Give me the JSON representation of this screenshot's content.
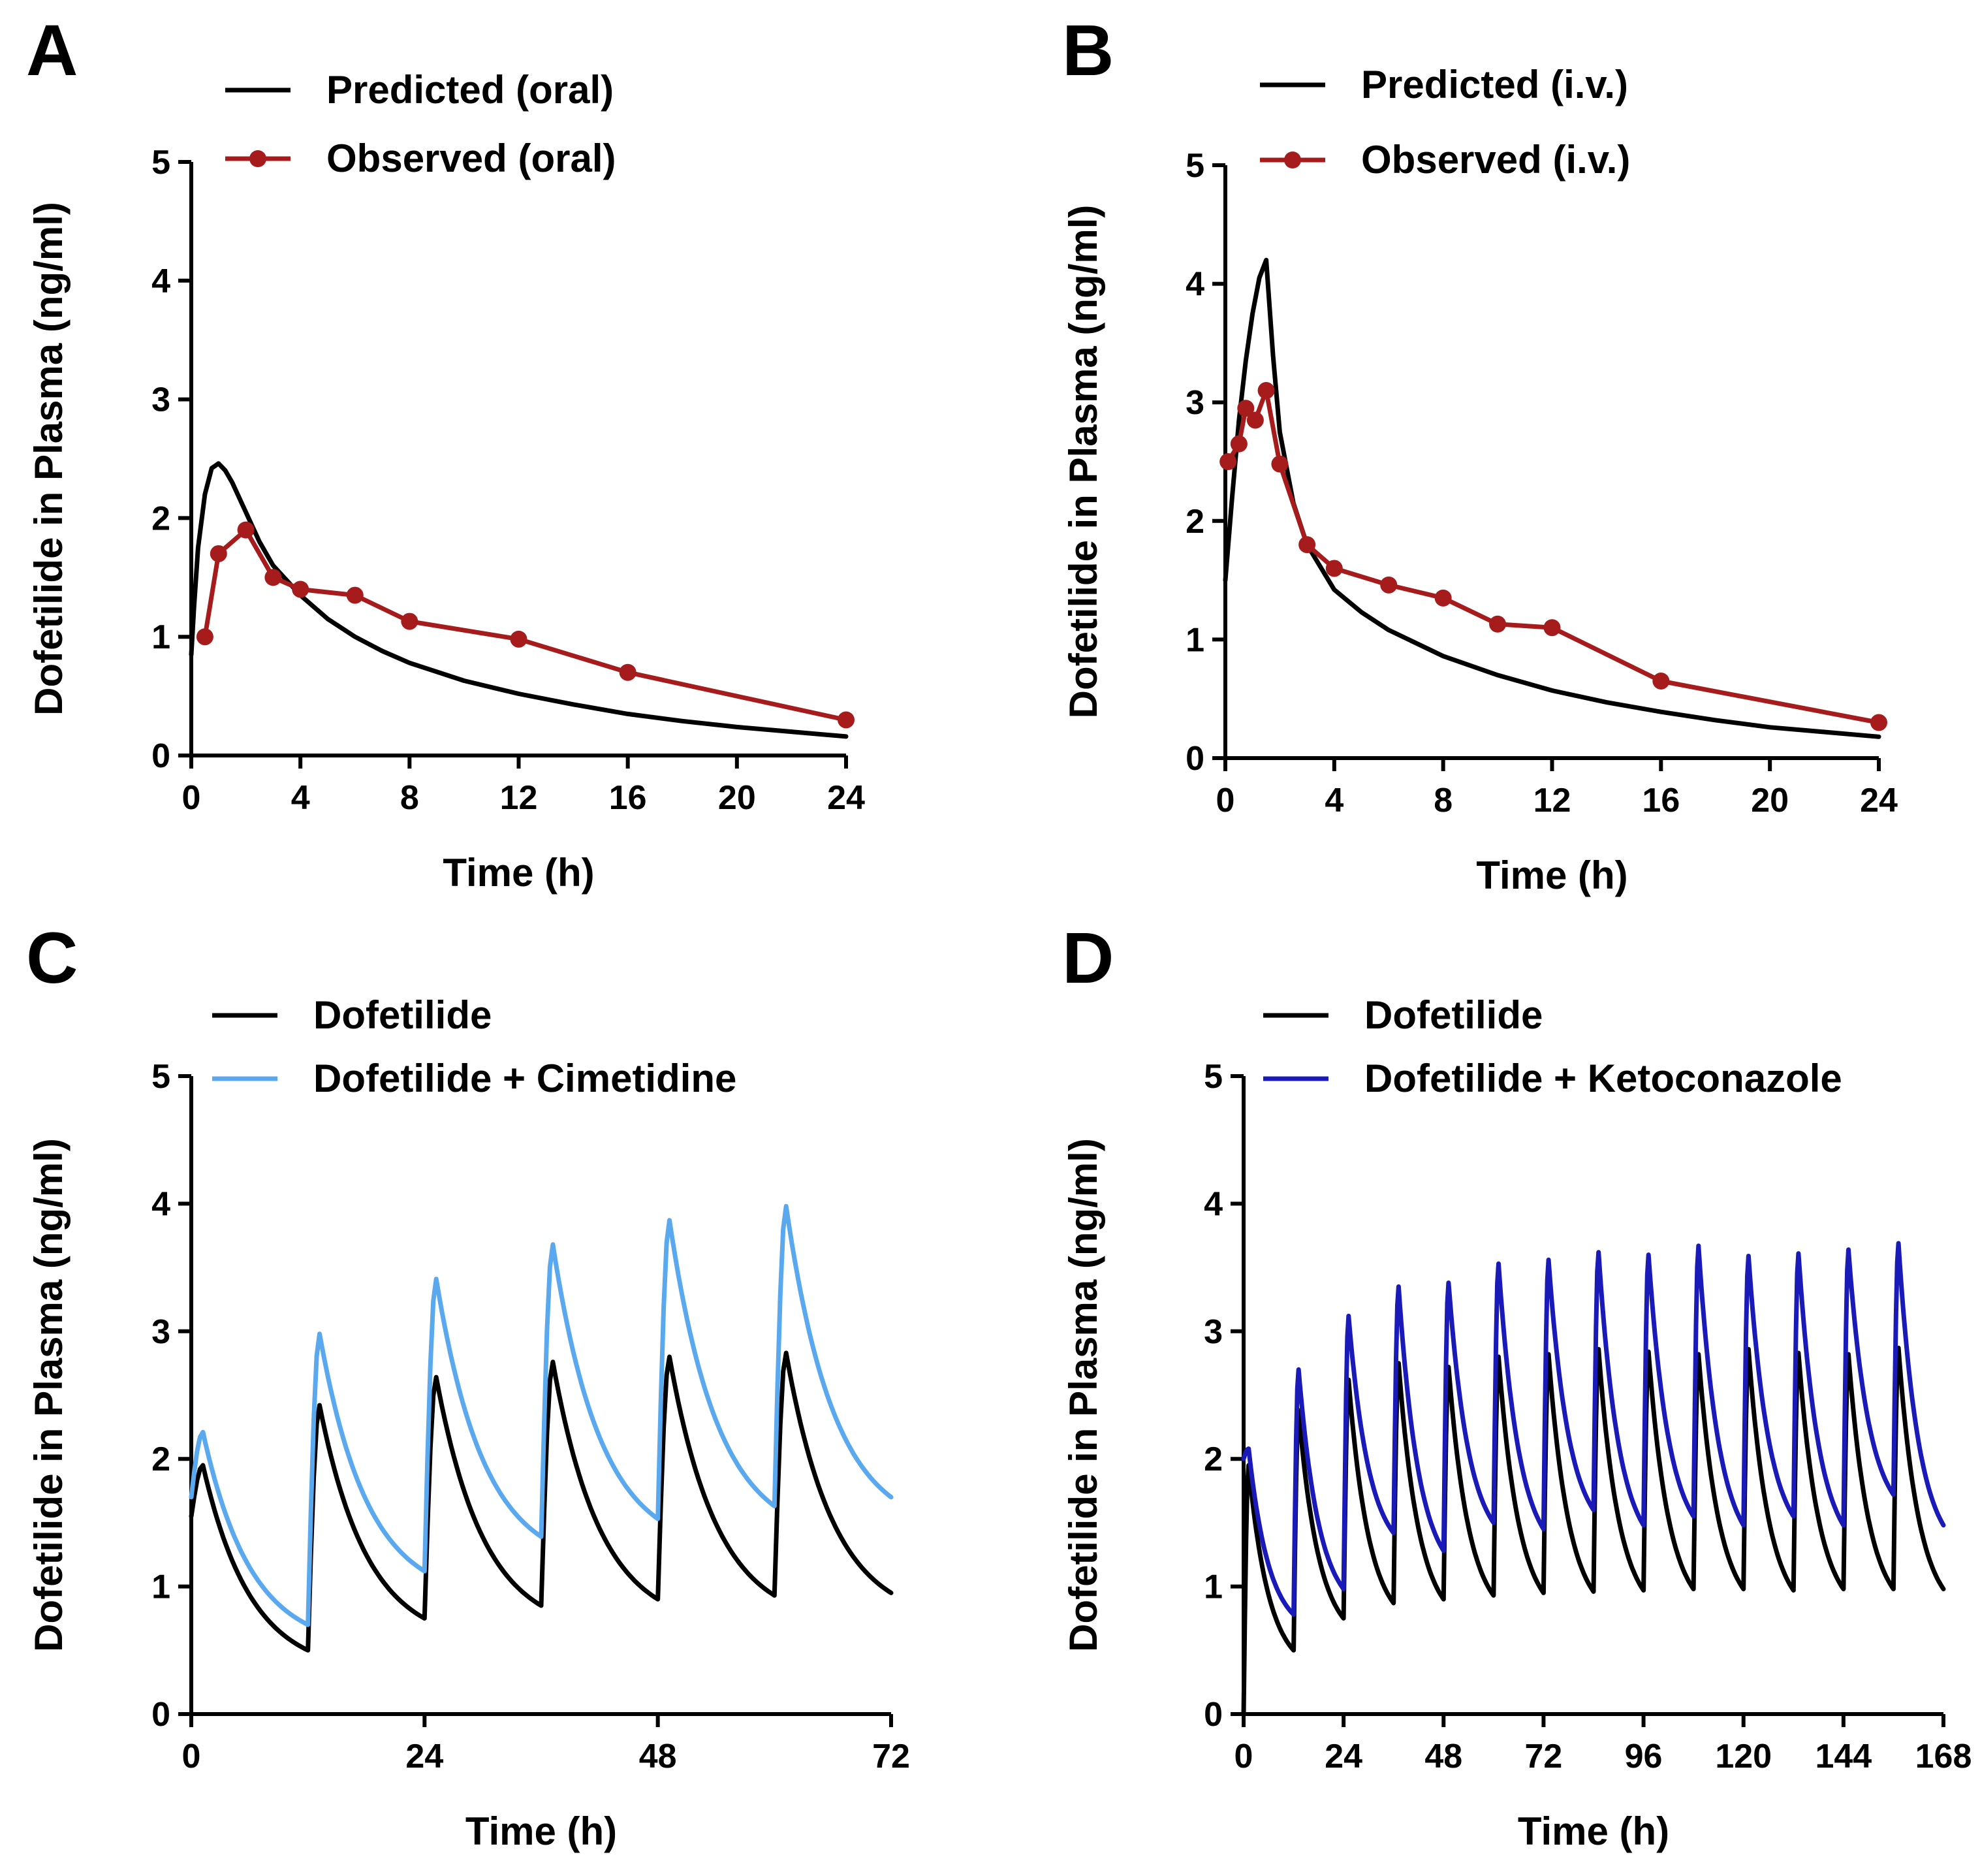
{
  "colors": {
    "predicted": "#000000",
    "observed": "#a61c1c",
    "cimetidine": "#5aa9ee",
    "ketoconazole": "#1a1ab8"
  },
  "chart_data": [
    {
      "panel": "A",
      "type": "line",
      "xlabel": "Time (h)",
      "ylabel": "Dofetilide in Plasma (ng/ml)",
      "xlim": [
        0,
        24
      ],
      "ylim": [
        0,
        5
      ],
      "xticks": [
        0,
        4,
        8,
        12,
        16,
        20,
        24
      ],
      "yticks": [
        0,
        1,
        2,
        3,
        4,
        5
      ],
      "legend_position": "top-left",
      "series": [
        {
          "name": "Predicted (oral)",
          "color": "#000000",
          "markers": false,
          "x": [
            0,
            0.1,
            0.25,
            0.5,
            0.75,
            1,
            1.25,
            1.5,
            2,
            2.5,
            3,
            4,
            5,
            6,
            7,
            8,
            10,
            12,
            14,
            16,
            18,
            20,
            22,
            24
          ],
          "y": [
            0.85,
            1.25,
            1.75,
            2.2,
            2.42,
            2.46,
            2.4,
            2.3,
            2.05,
            1.8,
            1.6,
            1.35,
            1.15,
            1.0,
            0.88,
            0.78,
            0.63,
            0.52,
            0.43,
            0.35,
            0.29,
            0.24,
            0.2,
            0.16
          ]
        },
        {
          "name": "Observed (oral)",
          "color": "#a61c1c",
          "markers": true,
          "x": [
            0.5,
            1,
            2,
            3,
            4,
            6,
            8,
            12,
            16,
            24
          ],
          "y": [
            1.0,
            1.7,
            1.9,
            1.5,
            1.4,
            1.35,
            1.13,
            0.98,
            0.7,
            0.3
          ]
        }
      ]
    },
    {
      "panel": "B",
      "type": "line",
      "xlabel": "Time (h)",
      "ylabel": "Dofetilide in Plasma (ng/ml)",
      "xlim": [
        0,
        24
      ],
      "ylim": [
        0,
        5
      ],
      "xticks": [
        0,
        4,
        8,
        12,
        16,
        20,
        24
      ],
      "yticks": [
        0,
        1,
        2,
        3,
        4,
        5
      ],
      "legend_position": "top-left",
      "series": [
        {
          "name": "Predicted (i.v.)",
          "color": "#000000",
          "markers": false,
          "x": [
            0,
            0.25,
            0.5,
            0.75,
            1,
            1.25,
            1.5,
            1.75,
            2,
            2.5,
            3,
            4,
            5,
            6,
            8,
            10,
            12,
            14,
            16,
            18,
            20,
            22,
            24
          ],
          "y": [
            1.5,
            2.2,
            2.85,
            3.35,
            3.75,
            4.05,
            4.2,
            3.4,
            2.75,
            2.15,
            1.8,
            1.42,
            1.23,
            1.08,
            0.86,
            0.7,
            0.57,
            0.47,
            0.39,
            0.32,
            0.26,
            0.22,
            0.18
          ]
        },
        {
          "name": "Observed (i.v.)",
          "color": "#a61c1c",
          "markers": true,
          "x": [
            0.1,
            0.5,
            0.75,
            1.1,
            1.5,
            2,
            3,
            4,
            6,
            8,
            10,
            12,
            16,
            24
          ],
          "y": [
            2.5,
            2.65,
            2.95,
            2.85,
            3.1,
            2.48,
            1.8,
            1.6,
            1.46,
            1.35,
            1.13,
            1.1,
            0.65,
            0.3
          ]
        }
      ]
    },
    {
      "panel": "C",
      "type": "line",
      "xlabel": "Time (h)",
      "ylabel": "Dofetilide in Plasma (ng/ml)",
      "xlim": [
        0,
        72
      ],
      "ylim": [
        0,
        5
      ],
      "xticks": [
        0,
        24,
        48,
        72
      ],
      "yticks": [
        0,
        1,
        2,
        3,
        4,
        5
      ],
      "dosing_interval_h": 12,
      "legend_position": "top-left",
      "series": [
        {
          "name": "Dofetilide",
          "color": "#000000",
          "start": 1.55,
          "peaks": [
            1.95,
            2.42,
            2.64,
            2.76,
            2.8,
            2.83
          ],
          "troughs": [
            0.5,
            0.75,
            0.85,
            0.9,
            0.93,
            0.95
          ]
        },
        {
          "name": "Dofetilide + Cimetidine",
          "color": "#5aa9ee",
          "start": 1.7,
          "peaks": [
            2.21,
            2.98,
            3.41,
            3.68,
            3.87,
            3.98
          ],
          "troughs": [
            0.7,
            1.12,
            1.39,
            1.53,
            1.63,
            1.7
          ]
        }
      ]
    },
    {
      "panel": "D",
      "type": "line",
      "xlabel": "Time (h)",
      "ylabel": "Dofetilide in Plasma (ng/ml)",
      "xlim": [
        0,
        168
      ],
      "ylim": [
        0,
        5
      ],
      "xticks": [
        0,
        24,
        48,
        72,
        96,
        120,
        144,
        168
      ],
      "yticks": [
        0,
        1,
        2,
        3,
        4,
        5
      ],
      "dosing_interval_h": 12,
      "legend_position": "top-left",
      "series": [
        {
          "name": "Dofetilide",
          "color": "#000000",
          "start": 0.0,
          "peaks": [
            1.95,
            2.38,
            2.62,
            2.75,
            2.72,
            2.8,
            2.82,
            2.86,
            2.84,
            2.82,
            2.86,
            2.83,
            2.82,
            2.87
          ],
          "troughs": [
            0.5,
            0.75,
            0.87,
            0.9,
            0.93,
            0.95,
            0.96,
            0.97,
            0.98,
            0.98,
            0.97,
            0.98,
            0.98,
            0.98
          ]
        },
        {
          "name": "Dofetilide + Ketoconazole",
          "color": "#1a1ab8",
          "start": 2.0,
          "peaks": [
            2.08,
            2.7,
            3.12,
            3.35,
            3.38,
            3.53,
            3.56,
            3.62,
            3.6,
            3.67,
            3.59,
            3.61,
            3.64,
            3.69
          ],
          "troughs": [
            0.78,
            0.98,
            1.42,
            1.28,
            1.5,
            1.45,
            1.6,
            1.48,
            1.55,
            1.48,
            1.55,
            1.48,
            1.72,
            1.48
          ]
        }
      ]
    }
  ]
}
